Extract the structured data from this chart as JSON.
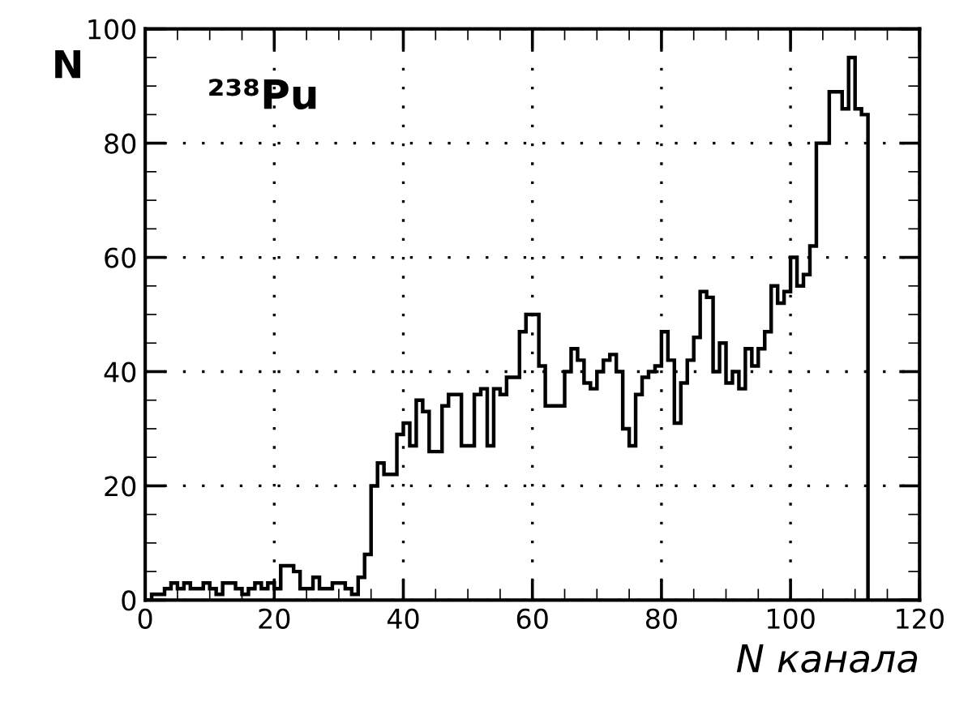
{
  "chart_data": {
    "type": "histogram",
    "xlabel": "N канала",
    "ylabel": "N",
    "annotations": [
      "²³⁸Pu"
    ],
    "bins": [
      0,
      1,
      2,
      3,
      4,
      5,
      6,
      7,
      8,
      9,
      10,
      11,
      12,
      13,
      14,
      15,
      16,
      17,
      18,
      19,
      20,
      21,
      22,
      23,
      24,
      25,
      26,
      27,
      28,
      29,
      30,
      31,
      32,
      33,
      34,
      35,
      36,
      37,
      38,
      39,
      40,
      41,
      42,
      43,
      44,
      45,
      46,
      47,
      48,
      49,
      50,
      51,
      52,
      53,
      54,
      55,
      56,
      57,
      58,
      59,
      60,
      61,
      62,
      63,
      64,
      65,
      66,
      67,
      68,
      69,
      70,
      71,
      72,
      73,
      74,
      75,
      76,
      77,
      78,
      79,
      80,
      81,
      82,
      83,
      84,
      85,
      86,
      87,
      88,
      89,
      90,
      91,
      92,
      93,
      94,
      95,
      96,
      97,
      98,
      99,
      100,
      101,
      102,
      103,
      104,
      105,
      106,
      107,
      108,
      109,
      110,
      111,
      112
    ],
    "values": [
      0,
      1,
      1,
      2,
      3,
      2,
      3,
      2,
      2,
      3,
      2,
      1,
      3,
      3,
      2,
      1,
      2,
      3,
      2,
      3,
      2,
      6,
      6,
      5,
      2,
      2,
      4,
      2,
      2,
      3,
      3,
      2,
      1,
      4,
      8,
      20,
      24,
      22,
      22,
      29,
      31,
      27,
      35,
      33,
      26,
      26,
      34,
      36,
      36,
      27,
      27,
      36,
      37,
      27,
      37,
      36,
      39,
      39,
      47,
      50,
      50,
      41,
      34,
      34,
      34,
      40,
      44,
      42,
      38,
      37,
      40,
      42,
      43,
      40,
      30,
      27,
      36,
      39,
      40,
      41,
      47,
      42,
      31,
      38,
      42,
      46,
      54,
      53,
      40,
      45,
      38,
      40,
      37,
      44,
      41,
      44,
      47,
      55,
      52,
      54,
      60,
      55,
      57,
      62,
      80,
      80,
      89,
      89,
      86,
      95,
      86,
      85
    ],
    "color": "#000000",
    "xlim": [
      0,
      120
    ],
    "ylim": [
      0,
      100
    ],
    "xticks": [
      0,
      20,
      40,
      60,
      80,
      100,
      120
    ],
    "yticks": [
      0,
      20,
      40,
      60,
      80,
      100
    ],
    "grid": true
  }
}
